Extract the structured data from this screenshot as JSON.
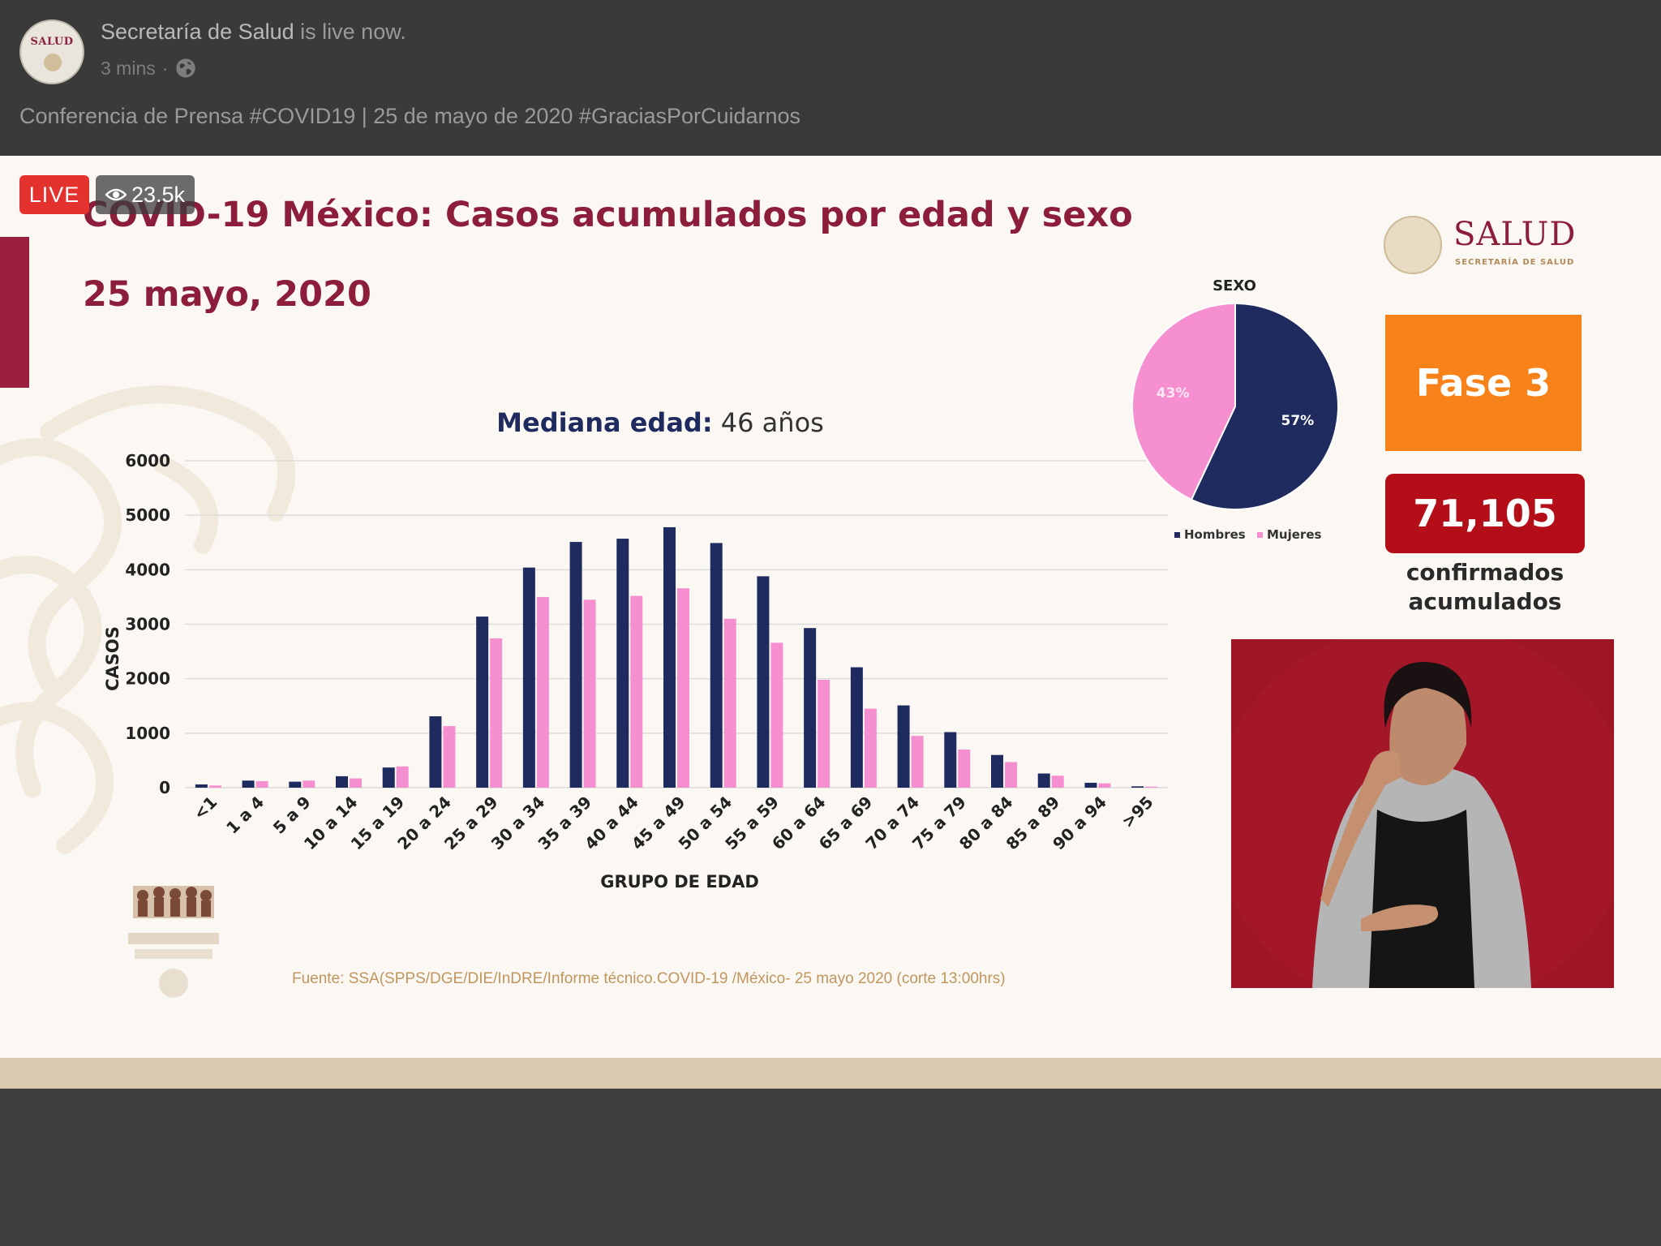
{
  "post": {
    "page_name": "Secretaría de Salud",
    "status": " is live now.",
    "time": "3 mins",
    "separator": "·",
    "caption": "Conferencia de Prensa #COVID19 | 25 de mayo de 2020 #GraciasPorCuidarnos",
    "avatar_text": "SALUD"
  },
  "video": {
    "live_label": "LIVE",
    "views": "23.5k"
  },
  "slide": {
    "title": "COVID-19 México: Casos acumulados por edad y sexo",
    "date": "25 mayo, 2020",
    "logo_word": "SALUD",
    "logo_sub": "SECRETARÍA DE SALUD",
    "phase": "Fase 3",
    "confirmed": "71,105",
    "confirmed_label_1": "confirmados",
    "confirmed_label_2": "acumulados",
    "median_label": "Mediana edad:",
    "median_value": " 46 años",
    "source": "Fuente: SSA(SPPS/DGE/DIE/InDRE/Informe técnico.COVID-19 /México- 25 mayo 2020 (corte 13:00hrs)"
  },
  "colors": {
    "hombres": "#1f2b5e",
    "mujeres": "#f58fcf",
    "title": "#8c1d3b"
  },
  "chart_data": [
    {
      "type": "bar",
      "title": "Mediana edad: 46 años",
      "xlabel": "GRUPO DE EDAD",
      "ylabel": "CASOS",
      "ylim": [
        0,
        6000
      ],
      "yticks": [
        0,
        1000,
        2000,
        3000,
        4000,
        5000,
        6000
      ],
      "grid": true,
      "categories": [
        "<1",
        "1 a 4",
        "5 a 9",
        "10 a 14",
        "15 a 19",
        "20 a 24",
        "25 a 29",
        "30 a 34",
        "35 a 39",
        "40 a 44",
        "45 a 49",
        "50 a 54",
        "55 a 59",
        "60 a 64",
        "65 a 69",
        "70 a 74",
        "75 a 79",
        "80 a 84",
        "85 a 89",
        "90 a 94",
        ">95"
      ],
      "series": [
        {
          "name": "Hombres",
          "values": [
            60,
            130,
            110,
            210,
            370,
            1310,
            3140,
            4040,
            4510,
            4570,
            4780,
            4490,
            3880,
            2930,
            2210,
            1510,
            1020,
            600,
            260,
            90,
            25
          ]
        },
        {
          "name": "Mujeres",
          "values": [
            40,
            120,
            130,
            170,
            390,
            1130,
            2740,
            3500,
            3450,
            3520,
            3660,
            3100,
            2660,
            1980,
            1450,
            950,
            700,
            470,
            220,
            80,
            20
          ]
        }
      ]
    },
    {
      "type": "pie",
      "title": "SEXO",
      "categories": [
        "Hombres",
        "Mujeres"
      ],
      "values": [
        57,
        43
      ],
      "labels": [
        "57%",
        "43%"
      ],
      "legend": "bottom"
    }
  ]
}
